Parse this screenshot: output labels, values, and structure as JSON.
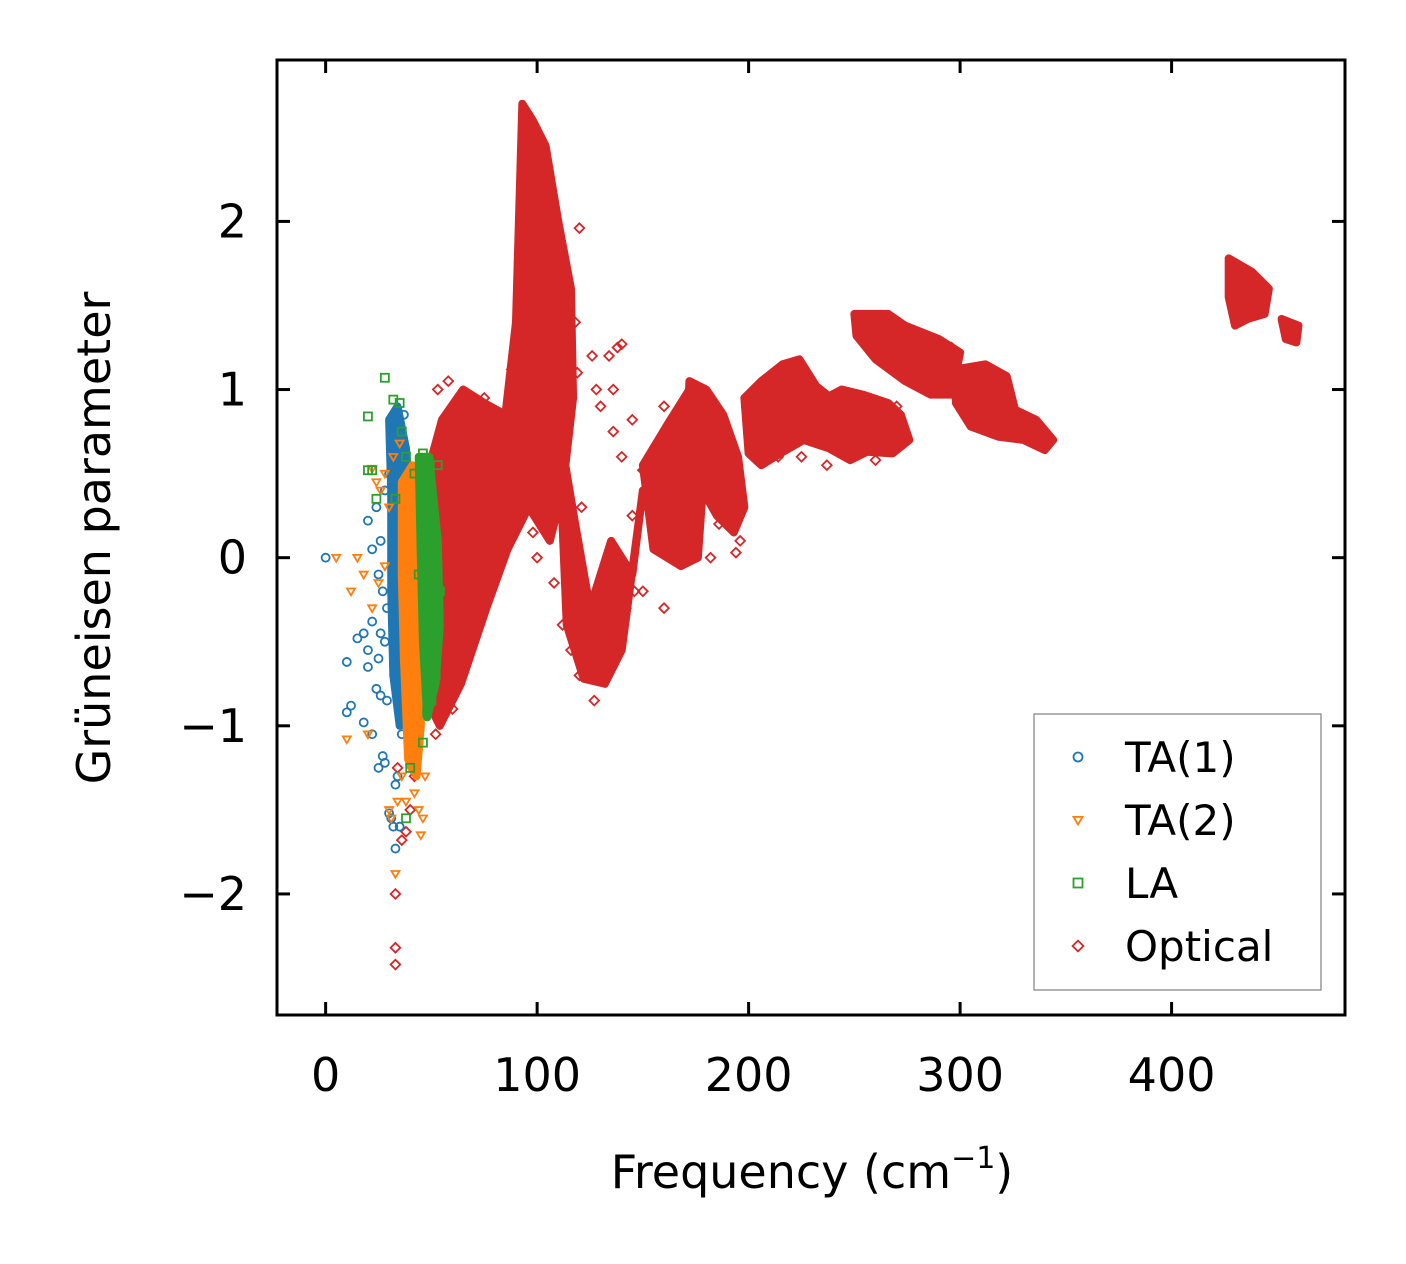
{
  "chart_data": {
    "type": "scatter",
    "title": "",
    "xlabel": "Frequency (cm",
    "xlabel_sup": "−1",
    "xlabel_end": ")",
    "ylabel": "Grüneisen parameter",
    "xlim": [
      -23,
      482
    ],
    "ylim": [
      -2.72,
      2.96
    ],
    "xticks": [
      0,
      100,
      200,
      300,
      400
    ],
    "xtick_labels": [
      "0",
      "100",
      "200",
      "300",
      "400"
    ],
    "yticks": [
      -2,
      -1,
      0,
      1,
      2
    ],
    "ytick_labels": [
      "−2",
      "−1",
      "0",
      "1",
      "2"
    ],
    "legend_position": "lower-right",
    "series": [
      {
        "name": "TA(1)",
        "marker": "circle",
        "color": "#1f77b4",
        "dense_regions": [
          [
            [
              30,
              0.82
            ],
            [
              34,
              0.9
            ],
            [
              38,
              0.65
            ],
            [
              40,
              0.3
            ],
            [
              39,
              -0.2
            ],
            [
              38,
              -0.8
            ],
            [
              35,
              -1.0
            ],
            [
              32,
              -0.7
            ],
            [
              31,
              -0.2
            ],
            [
              31,
              0.4
            ]
          ]
        ],
        "points": [
          [
            0,
            0
          ],
          [
            10,
            -0.62
          ],
          [
            10,
            -0.92
          ],
          [
            12,
            -0.88
          ],
          [
            15,
            -0.48
          ],
          [
            18,
            -0.98
          ],
          [
            18,
            -0.45
          ],
          [
            20,
            -0.65
          ],
          [
            20,
            -0.55
          ],
          [
            22,
            -0.38
          ],
          [
            22,
            -1.05
          ],
          [
            24,
            -0.78
          ],
          [
            25,
            -1.25
          ],
          [
            25,
            -0.6
          ],
          [
            26,
            -0.82
          ],
          [
            26,
            -0.45
          ],
          [
            27,
            -1.18
          ],
          [
            28,
            -1.22
          ],
          [
            28,
            -0.5
          ],
          [
            29,
            -0.85
          ],
          [
            30,
            -1.52
          ],
          [
            31,
            -1.55
          ],
          [
            32,
            -1.6
          ],
          [
            33,
            -1.35
          ],
          [
            33,
            -1.73
          ],
          [
            34,
            -1.3
          ],
          [
            35,
            -1.6
          ],
          [
            36,
            -1.05
          ],
          [
            38,
            -1.0
          ],
          [
            39,
            -0.55
          ],
          [
            40,
            -0.6
          ],
          [
            20,
            0.22
          ],
          [
            22,
            0.05
          ],
          [
            25,
            -0.1
          ],
          [
            24,
            0.3
          ],
          [
            26,
            0.1
          ],
          [
            27,
            -0.2
          ],
          [
            28,
            0.4
          ],
          [
            29,
            -0.3
          ],
          [
            30,
            0.5
          ],
          [
            32,
            0.3
          ],
          [
            34,
            0.75
          ],
          [
            36,
            0.6
          ],
          [
            37,
            0.85
          ],
          [
            38,
            0.45
          ],
          [
            40,
            0.15
          ],
          [
            41,
            -0.35
          ],
          [
            42,
            -0.55
          ],
          [
            36,
            -0.9
          ],
          [
            37,
            -0.45
          ],
          [
            39,
            -0.75
          ]
        ]
      },
      {
        "name": "TA(2)",
        "marker": "triangle-down",
        "color": "#ff7f0e",
        "dense_regions": [
          [
            [
              36,
              0.45
            ],
            [
              41,
              0.55
            ],
            [
              45,
              0.2
            ],
            [
              46,
              -0.3
            ],
            [
              45,
              -1.0
            ],
            [
              43,
              -1.3
            ],
            [
              39,
              -1.2
            ],
            [
              37,
              -0.6
            ],
            [
              36,
              -0.1
            ]
          ]
        ],
        "points": [
          [
            5,
            0
          ],
          [
            10,
            -1.08
          ],
          [
            12,
            -0.2
          ],
          [
            15,
            0
          ],
          [
            18,
            -0.1
          ],
          [
            20,
            -1.05
          ],
          [
            22,
            -0.3
          ],
          [
            25,
            -0.15
          ],
          [
            28,
            -0.05
          ],
          [
            30,
            -1.5
          ],
          [
            31,
            -1.55
          ],
          [
            33,
            -1.88
          ],
          [
            34,
            -1.45
          ],
          [
            36,
            -1.3
          ],
          [
            38,
            -1.45
          ],
          [
            40,
            -1.25
          ],
          [
            42,
            -1.4
          ],
          [
            44,
            -1.5
          ],
          [
            45,
            -1.65
          ],
          [
            46,
            -1.55
          ],
          [
            47,
            -1.3
          ],
          [
            22,
            0.53
          ],
          [
            24,
            0.45
          ],
          [
            26,
            0.4
          ],
          [
            28,
            0.5
          ],
          [
            30,
            0.3
          ],
          [
            32,
            0.6
          ],
          [
            35,
            0.68
          ],
          [
            48,
            -0.8
          ],
          [
            50,
            -0.5
          ],
          [
            47,
            0.1
          ],
          [
            49,
            -0.2
          ],
          [
            44,
            0.5
          ]
        ]
      },
      {
        "name": "LA",
        "marker": "square",
        "color": "#2ca02c",
        "dense_regions": [
          [
            [
              44,
              0.6
            ],
            [
              49,
              0.6
            ],
            [
              53,
              0.1
            ],
            [
              54,
              -0.4
            ],
            [
              52,
              -0.75
            ],
            [
              48,
              -0.95
            ],
            [
              46,
              -0.5
            ],
            [
              45,
              0.0
            ]
          ]
        ],
        "points": [
          [
            20,
            0.84
          ],
          [
            20,
            0.52
          ],
          [
            22,
            0.52
          ],
          [
            24,
            0.35
          ],
          [
            28,
            1.07
          ],
          [
            32,
            0.94
          ],
          [
            33,
            0.35
          ],
          [
            35,
            0.92
          ],
          [
            36,
            0.75
          ],
          [
            38,
            0.6
          ],
          [
            38,
            -1.55
          ],
          [
            40,
            -1.25
          ],
          [
            42,
            0.5
          ],
          [
            44,
            -0.1
          ],
          [
            46,
            -1.1
          ],
          [
            46,
            0.62
          ],
          [
            48,
            -0.92
          ],
          [
            50,
            -0.85
          ],
          [
            52,
            -0.7
          ],
          [
            53,
            0.55
          ],
          [
            54,
            -0.2
          ]
        ]
      },
      {
        "name": "Optical",
        "marker": "diamond",
        "color": "#d62728",
        "dense_regions": [
          [
            [
              42,
              0.22
            ],
            [
              55,
              0.82
            ],
            [
              65,
              1.0
            ],
            [
              75,
              0.92
            ],
            [
              85,
              0.85
            ],
            [
              90,
              1.4
            ],
            [
              93,
              2.7
            ],
            [
              98,
              2.6
            ],
            [
              104,
              2.45
            ],
            [
              110,
              2.0
            ],
            [
              116,
              1.6
            ],
            [
              117,
              0.95
            ],
            [
              112,
              0.4
            ],
            [
              106,
              0.1
            ],
            [
              96,
              0.3
            ],
            [
              86,
              0.05
            ],
            [
              76,
              -0.3
            ],
            [
              64,
              -0.75
            ],
            [
              54,
              -1.0
            ],
            [
              46,
              -0.8
            ],
            [
              43,
              -0.3
            ]
          ],
          [
            [
              110,
              0.8
            ],
            [
              118,
              0.2
            ],
            [
              125,
              -0.3
            ],
            [
              135,
              0.1
            ],
            [
              145,
              -0.1
            ],
            [
              150,
              0.4
            ],
            [
              140,
              -0.55
            ],
            [
              132,
              -0.75
            ],
            [
              122,
              -0.72
            ],
            [
              114,
              -0.4
            ]
          ],
          [
            [
              150,
              0.55
            ],
            [
              162,
              0.8
            ],
            [
              172,
              1.0
            ],
            [
              178,
              0.35
            ],
            [
              176,
              0.0
            ],
            [
              168,
              -0.05
            ],
            [
              155,
              0.05
            ]
          ],
          [
            [
              172,
              1.05
            ],
            [
              180,
              1.0
            ],
            [
              188,
              0.85
            ],
            [
              195,
              0.6
            ],
            [
              198,
              0.3
            ],
            [
              193,
              0.15
            ],
            [
              185,
              0.25
            ],
            [
              176,
              0.45
            ],
            [
              171,
              0.75
            ]
          ],
          [
            [
              198,
              0.95
            ],
            [
              206,
              1.05
            ],
            [
              216,
              1.15
            ],
            [
              224,
              1.18
            ],
            [
              232,
              1.02
            ],
            [
              238,
              0.96
            ],
            [
              244,
              1.0
            ],
            [
              254,
              0.97
            ],
            [
              266,
              0.92
            ],
            [
              272,
              0.85
            ],
            [
              276,
              0.7
            ],
            [
              268,
              0.62
            ],
            [
              256,
              0.63
            ],
            [
              248,
              0.58
            ],
            [
              238,
              0.65
            ],
            [
              226,
              0.7
            ],
            [
              215,
              0.62
            ],
            [
              206,
              0.55
            ],
            [
              200,
              0.62
            ]
          ],
          [
            [
              250,
              1.45
            ],
            [
              266,
              1.45
            ],
            [
              274,
              1.38
            ],
            [
              290,
              1.3
            ],
            [
              300,
              1.22
            ],
            [
              296,
              0.97
            ],
            [
              286,
              0.97
            ],
            [
              274,
              1.05
            ],
            [
              260,
              1.18
            ],
            [
              251,
              1.32
            ]
          ],
          [
            [
              298,
              1.12
            ],
            [
              312,
              1.15
            ],
            [
              322,
              1.08
            ],
            [
              326,
              0.88
            ],
            [
              336,
              0.82
            ],
            [
              344,
              0.7
            ],
            [
              340,
              0.64
            ],
            [
              330,
              0.7
            ],
            [
              318,
              0.72
            ],
            [
              305,
              0.78
            ],
            [
              298,
              0.92
            ]
          ],
          [
            [
              427,
              1.78
            ],
            [
              438,
              1.7
            ],
            [
              446,
              1.6
            ],
            [
              444,
              1.45
            ],
            [
              436,
              1.42
            ],
            [
              430,
              1.38
            ],
            [
              427,
              1.55
            ]
          ],
          [
            [
              452,
              1.42
            ],
            [
              460,
              1.38
            ],
            [
              459,
              1.28
            ],
            [
              454,
              1.3
            ]
          ]
        ],
        "points": [
          [
            33,
            -2.0
          ],
          [
            33,
            -2.32
          ],
          [
            33,
            -2.42
          ],
          [
            34,
            -1.25
          ],
          [
            36,
            -1.68
          ],
          [
            38,
            -1.63
          ],
          [
            40,
            -1.5
          ],
          [
            42,
            -1.3
          ],
          [
            45,
            -0.9
          ],
          [
            52,
            -1.05
          ],
          [
            56,
            -0.75
          ],
          [
            60,
            -0.9
          ],
          [
            53,
            1.0
          ],
          [
            58,
            1.05
          ],
          [
            62,
            0.9
          ],
          [
            68,
            0.8
          ],
          [
            75,
            0.95
          ],
          [
            88,
            1.12
          ],
          [
            95,
            1.35
          ],
          [
            98,
            0.15
          ],
          [
            100,
            0.0
          ],
          [
            120,
            1.96
          ],
          [
            118,
            1.4
          ],
          [
            119,
            1.1
          ],
          [
            121,
            0.3
          ],
          [
            126,
            1.2
          ],
          [
            128,
            1.0
          ],
          [
            130,
            0.9
          ],
          [
            134,
            1.2
          ],
          [
            136,
            1.0
          ],
          [
            138,
            1.25
          ],
          [
            140,
            1.27
          ],
          [
            136,
            0.75
          ],
          [
            140,
            0.6
          ],
          [
            145,
            0.82
          ],
          [
            150,
            0.52
          ],
          [
            145,
            0.25
          ],
          [
            150,
            -0.2
          ],
          [
            154,
            0.5
          ],
          [
            160,
            0.9
          ],
          [
            160,
            -0.3
          ],
          [
            164,
            0.3
          ],
          [
            108,
            -0.15
          ],
          [
            112,
            -0.4
          ],
          [
            116,
            -0.55
          ],
          [
            120,
            -0.7
          ],
          [
            124,
            -0.65
          ],
          [
            127,
            -0.85
          ],
          [
            130,
            -0.7
          ],
          [
            133,
            -0.6
          ],
          [
            137,
            -0.45
          ],
          [
            142,
            -0.3
          ],
          [
            146,
            -0.2
          ],
          [
            194,
            0.03
          ],
          [
            196,
            0.1
          ],
          [
            182,
            0.0
          ],
          [
            186,
            0.2
          ],
          [
            305,
            1.05
          ],
          [
            296,
            1.25
          ],
          [
            225,
            0.6
          ],
          [
            237,
            0.55
          ],
          [
            214,
            0.6
          ],
          [
            260,
            0.58
          ],
          [
            270,
            0.9
          ],
          [
            282,
            1.12
          ]
        ]
      }
    ]
  }
}
